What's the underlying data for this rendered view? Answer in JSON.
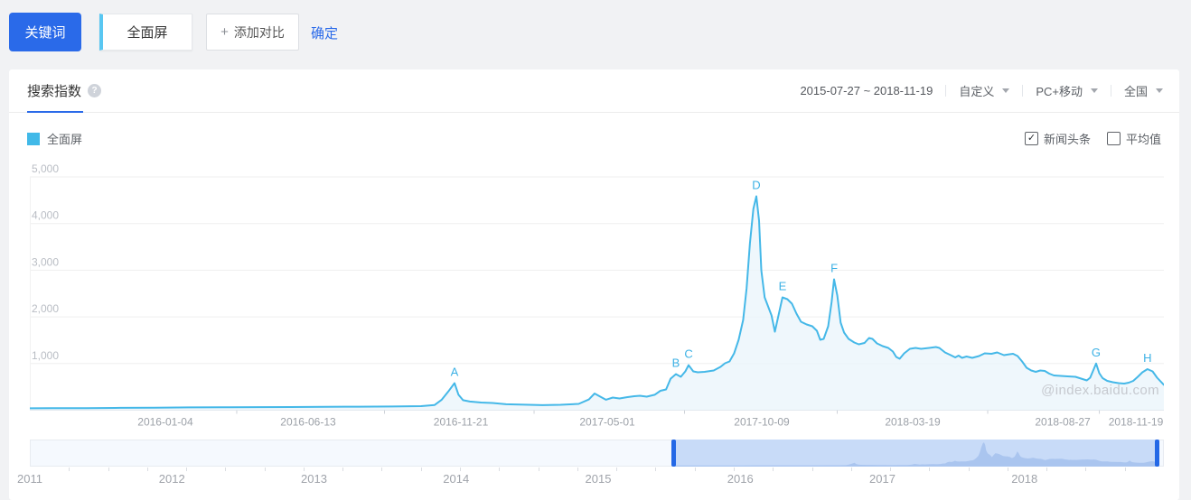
{
  "colors": {
    "accent": "#2a6ae9",
    "line": "#45b8e8",
    "legend_swatch": "#41b9e8",
    "area_fill": "#e9f4fb",
    "marker_text": "#3cb1e5",
    "sel_fill": "#c8dbf8",
    "sel_mini": "#aac5ef",
    "handle": "#2468e6"
  },
  "topbar": {
    "keyword_label": "关键词",
    "keyword_value": "全面屏",
    "add_compare_plus": "+",
    "add_compare_label": "添加对比",
    "confirm_label": "确定"
  },
  "panel": {
    "header": {
      "active_tab": "搜索指数",
      "help_glyph": "?",
      "date_range": "2015-07-27 ~ 2018-11-19",
      "range_preset": "自定义",
      "platform": "PC+移动",
      "region": "全国"
    },
    "legend": {
      "series_label": "全面屏"
    },
    "toggles": [
      {
        "label": "新闻头条",
        "checked": true
      },
      {
        "label": "平均值",
        "checked": false
      }
    ],
    "watermark": "@index.baidu.com"
  },
  "chart_data": {
    "type": "line",
    "series_name": "全面屏",
    "ylabel": "搜索指数",
    "ylim": [
      0,
      5000
    ],
    "grid": true,
    "yticks": [
      {
        "v": 1000,
        "label": "1,000"
      },
      {
        "v": 2000,
        "label": "2,000"
      },
      {
        "v": 3000,
        "label": "3,000"
      },
      {
        "v": 4000,
        "label": "4,000"
      },
      {
        "v": 5000,
        "label": "5,000"
      }
    ],
    "x_axis_labels": [
      {
        "label": "2016-01-04",
        "f": 0.1195
      },
      {
        "label": "2016-06-13",
        "f": 0.2454
      },
      {
        "label": "2016-11-21",
        "f": 0.3801
      },
      {
        "label": "2017-05-01",
        "f": 0.5092
      },
      {
        "label": "2017-10-09",
        "f": 0.6454
      },
      {
        "label": "2018-03-19",
        "f": 0.7785
      },
      {
        "label": "2018-08-27",
        "f": 0.9108
      },
      {
        "label": "2018-11-19",
        "f": 0.9753
      }
    ],
    "markers": [
      {
        "label": "A",
        "f": 0.3745,
        "v": 580
      },
      {
        "label": "B",
        "f": 0.5697,
        "v": 774
      },
      {
        "label": "C",
        "f": 0.5809,
        "v": 965
      },
      {
        "label": "D",
        "f": 0.6406,
        "v": 4584
      },
      {
        "label": "E",
        "f": 0.6637,
        "v": 2418
      },
      {
        "label": "F",
        "f": 0.7092,
        "v": 2804
      },
      {
        "label": "G",
        "f": 0.9402,
        "v": 1000
      },
      {
        "label": "H",
        "f": 0.9855,
        "v": 880
      }
    ],
    "points": [
      [
        0,
        40
      ],
      [
        0.02,
        42
      ],
      [
        0.05,
        45
      ],
      [
        0.08,
        50
      ],
      [
        0.11,
        52
      ],
      [
        0.14,
        60
      ],
      [
        0.17,
        62
      ],
      [
        0.2,
        66
      ],
      [
        0.23,
        68
      ],
      [
        0.26,
        72
      ],
      [
        0.29,
        75
      ],
      [
        0.32,
        80
      ],
      [
        0.345,
        88
      ],
      [
        0.357,
        112
      ],
      [
        0.363,
        220
      ],
      [
        0.369,
        400
      ],
      [
        0.3745,
        580
      ],
      [
        0.378,
        330
      ],
      [
        0.382,
        215
      ],
      [
        0.388,
        185
      ],
      [
        0.398,
        165
      ],
      [
        0.408,
        155
      ],
      [
        0.42,
        128
      ],
      [
        0.436,
        118
      ],
      [
        0.452,
        108
      ],
      [
        0.468,
        116
      ],
      [
        0.484,
        135
      ],
      [
        0.493,
        230
      ],
      [
        0.498,
        358
      ],
      [
        0.503,
        290
      ],
      [
        0.508,
        224
      ],
      [
        0.514,
        270
      ],
      [
        0.52,
        252
      ],
      [
        0.527,
        280
      ],
      [
        0.533,
        300
      ],
      [
        0.538,
        310
      ],
      [
        0.544,
        290
      ],
      [
        0.551,
        330
      ],
      [
        0.556,
        416
      ],
      [
        0.561,
        445
      ],
      [
        0.565,
        675
      ],
      [
        0.5697,
        774
      ],
      [
        0.574,
        716
      ],
      [
        0.578,
        832
      ],
      [
        0.5809,
        965
      ],
      [
        0.585,
        832
      ],
      [
        0.589,
        812
      ],
      [
        0.595,
        822
      ],
      [
        0.603,
        851
      ],
      [
        0.609,
        928
      ],
      [
        0.613,
        1006
      ],
      [
        0.617,
        1044
      ],
      [
        0.621,
        1218
      ],
      [
        0.625,
        1508
      ],
      [
        0.629,
        1934
      ],
      [
        0.632,
        2611
      ],
      [
        0.635,
        3578
      ],
      [
        0.638,
        4313
      ],
      [
        0.6406,
        4584
      ],
      [
        0.643,
        4062
      ],
      [
        0.645,
        2998
      ],
      [
        0.648,
        2418
      ],
      [
        0.651,
        2224
      ],
      [
        0.654,
        2031
      ],
      [
        0.657,
        1683
      ],
      [
        0.661,
        2127
      ],
      [
        0.6637,
        2418
      ],
      [
        0.668,
        2379
      ],
      [
        0.672,
        2282
      ],
      [
        0.676,
        2069
      ],
      [
        0.68,
        1895
      ],
      [
        0.685,
        1837
      ],
      [
        0.69,
        1798
      ],
      [
        0.694,
        1702
      ],
      [
        0.697,
        1509
      ],
      [
        0.7,
        1528
      ],
      [
        0.704,
        1798
      ],
      [
        0.707,
        2321
      ],
      [
        0.7092,
        2804
      ],
      [
        0.712,
        2456
      ],
      [
        0.715,
        1876
      ],
      [
        0.718,
        1663
      ],
      [
        0.722,
        1528
      ],
      [
        0.727,
        1451
      ],
      [
        0.731,
        1412
      ],
      [
        0.736,
        1441
      ],
      [
        0.74,
        1547
      ],
      [
        0.743,
        1528
      ],
      [
        0.747,
        1431
      ],
      [
        0.752,
        1373
      ],
      [
        0.757,
        1334
      ],
      [
        0.761,
        1257
      ],
      [
        0.764,
        1141
      ],
      [
        0.767,
        1102
      ],
      [
        0.771,
        1218
      ],
      [
        0.776,
        1315
      ],
      [
        0.781,
        1334
      ],
      [
        0.786,
        1315
      ],
      [
        0.793,
        1334
      ],
      [
        0.799,
        1354
      ],
      [
        0.802,
        1334
      ],
      [
        0.807,
        1238
      ],
      [
        0.812,
        1180
      ],
      [
        0.816,
        1131
      ],
      [
        0.819,
        1170
      ],
      [
        0.822,
        1122
      ],
      [
        0.826,
        1151
      ],
      [
        0.831,
        1122
      ],
      [
        0.837,
        1160
      ],
      [
        0.842,
        1218
      ],
      [
        0.848,
        1209
      ],
      [
        0.853,
        1238
      ],
      [
        0.859,
        1180
      ],
      [
        0.864,
        1199
      ],
      [
        0.867,
        1209
      ],
      [
        0.871,
        1160
      ],
      [
        0.875,
        1044
      ],
      [
        0.879,
        909
      ],
      [
        0.883,
        851
      ],
      [
        0.887,
        822
      ],
      [
        0.891,
        851
      ],
      [
        0.895,
        841
      ],
      [
        0.899,
        783
      ],
      [
        0.903,
        745
      ],
      [
        0.909,
        735
      ],
      [
        0.915,
        725
      ],
      [
        0.922,
        716
      ],
      [
        0.927,
        677
      ],
      [
        0.932,
        638
      ],
      [
        0.935,
        696
      ],
      [
        0.938,
        870
      ],
      [
        0.9402,
        1000
      ],
      [
        0.943,
        793
      ],
      [
        0.946,
        687
      ],
      [
        0.95,
        629
      ],
      [
        0.955,
        600
      ],
      [
        0.96,
        580
      ],
      [
        0.965,
        571
      ],
      [
        0.969,
        590
      ],
      [
        0.973,
        629
      ],
      [
        0.977,
        716
      ],
      [
        0.981,
        812
      ],
      [
        0.9855,
        880
      ],
      [
        0.99,
        832
      ],
      [
        0.994,
        696
      ],
      [
        1,
        542
      ]
    ]
  },
  "timeline": {
    "years": [
      {
        "label": "2011",
        "f": 0.0
      },
      {
        "label": "2012",
        "f": 0.1253
      },
      {
        "label": "2013",
        "f": 0.2506
      },
      {
        "label": "2014",
        "f": 0.3759
      },
      {
        "label": "2015",
        "f": 0.5012
      },
      {
        "label": "2016",
        "f": 0.6265
      },
      {
        "label": "2017",
        "f": 0.7518
      },
      {
        "label": "2018",
        "f": 0.8771
      }
    ],
    "selection": {
      "start_f": 0.567,
      "end_f": 0.996
    }
  }
}
